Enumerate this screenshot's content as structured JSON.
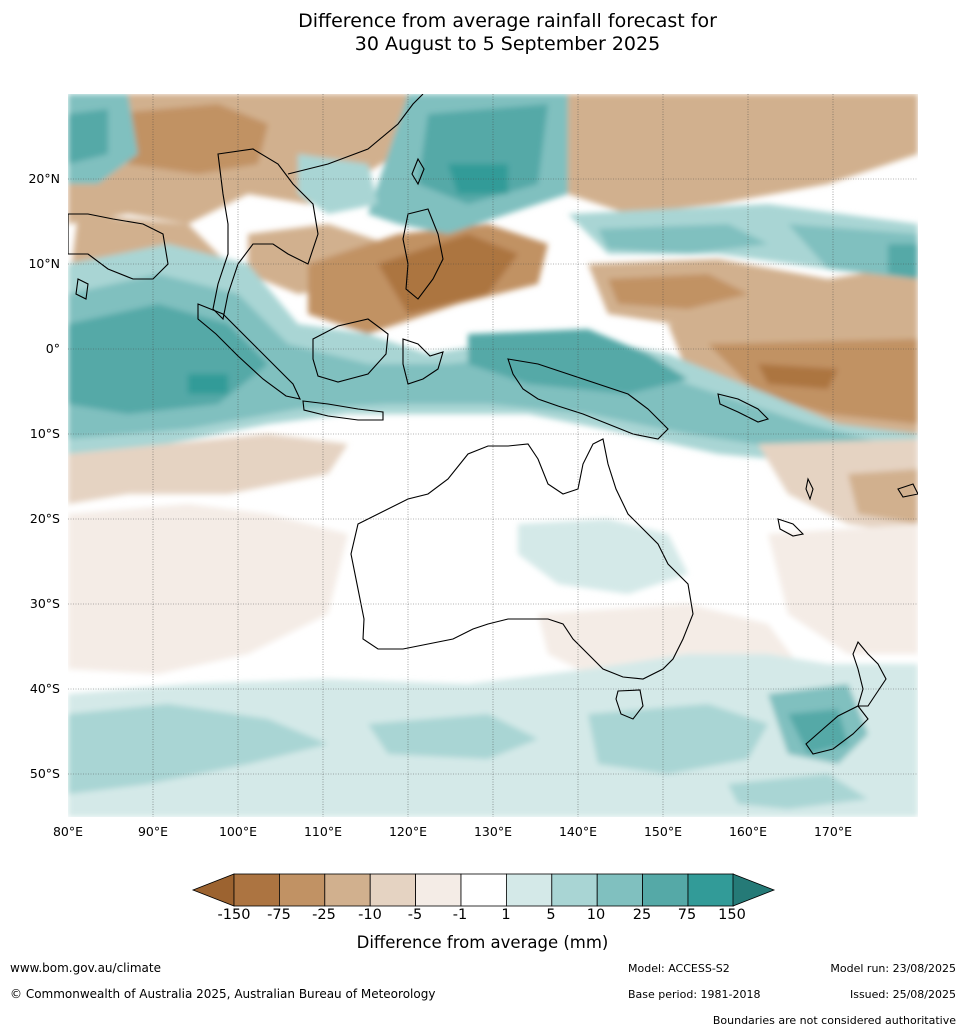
{
  "title_line1": "Difference from average rainfall forecast for",
  "title_line2": "30 August to 5 September 2025",
  "lat_labels": [
    "20°N",
    "10°N",
    "0°",
    "10°S",
    "20°S",
    "30°S",
    "40°S",
    "50°S"
  ],
  "lon_labels": [
    "80°E",
    "90°E",
    "100°E",
    "110°E",
    "120°E",
    "130°E",
    "140°E",
    "150°E",
    "160°E",
    "170°E"
  ],
  "colorbar": {
    "ticks": [
      "-150",
      "-75",
      "-25",
      "-10",
      "-5",
      "-1",
      "1",
      "5",
      "10",
      "25",
      "75",
      "150"
    ],
    "colors": [
      "#9c6330",
      "#ac7441",
      "#c19264",
      "#d1b08e",
      "#e5d3c2",
      "#f4ece6",
      "#ffffff",
      "#d4e9e8",
      "#a9d5d4",
      "#80c0bf",
      "#55a9a7",
      "#329b98",
      "#257a77"
    ],
    "label": "Difference from average (mm)"
  },
  "footer": {
    "website": "www.bom.gov.au/climate",
    "copyright": "© Commonwealth of Australia 2025, Australian Bureau of Meteorology",
    "model": "Model: ACCESS-S2",
    "base_period": "Base period: 1981-2018",
    "model_run": "Model run: 23/08/2025",
    "issued": "Issued: 25/08/2025",
    "disclaimer": "Boundaries are not considered authoritative"
  }
}
